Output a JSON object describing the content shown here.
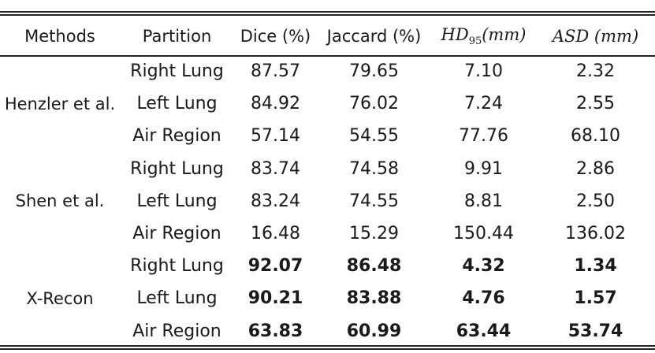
{
  "headers": {
    "methods": "Methods",
    "partition": "Partition",
    "dice": "Dice (%)",
    "jaccard": "Jaccard (%)",
    "hd": "HD",
    "hd_sub": "95",
    "hd_unit": "(mm)",
    "asd": "ASD (mm)"
  },
  "groups": [
    {
      "method": "Henzler et al.",
      "rows": [
        {
          "partition": "Right Lung",
          "dice": "87.57",
          "jaccard": "79.65",
          "hd95": "7.10",
          "asd": "2.32"
        },
        {
          "partition": "Left Lung",
          "dice": "84.92",
          "jaccard": "76.02",
          "hd95": "7.24",
          "asd": "2.55"
        },
        {
          "partition": "Air Region",
          "dice": "57.14",
          "jaccard": "54.55",
          "hd95": "77.76",
          "asd": "68.10"
        }
      ]
    },
    {
      "method": "Shen et al.",
      "rows": [
        {
          "partition": "Right Lung",
          "dice": "83.74",
          "jaccard": "74.58",
          "hd95": "9.91",
          "asd": "2.86"
        },
        {
          "partition": "Left Lung",
          "dice": "83.24",
          "jaccard": "74.55",
          "hd95": "8.81",
          "asd": "2.50"
        },
        {
          "partition": "Air Region",
          "dice": "16.48",
          "jaccard": "15.29",
          "hd95": "150.44",
          "asd": "136.02"
        }
      ]
    },
    {
      "method": "X-Recon",
      "rows": [
        {
          "partition": "Right Lung",
          "dice": "92.07",
          "jaccard": "86.48",
          "hd95": "4.32",
          "asd": "1.34"
        },
        {
          "partition": "Left Lung",
          "dice": "90.21",
          "jaccard": "83.88",
          "hd95": "4.76",
          "asd": "1.57"
        },
        {
          "partition": "Air Region",
          "dice": "63.83",
          "jaccard": "60.99",
          "hd95": "63.44",
          "asd": "53.74"
        }
      ]
    }
  ]
}
